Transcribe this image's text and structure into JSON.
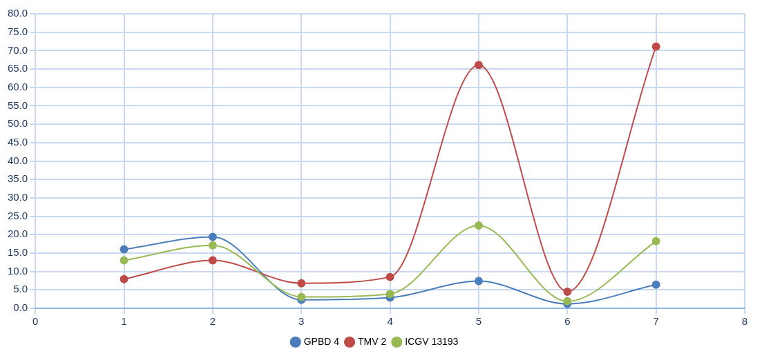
{
  "chart_data": {
    "type": "line",
    "x": [
      1,
      2,
      3,
      4,
      5,
      6,
      7
    ],
    "series": [
      {
        "name": "GPBD 4",
        "color": "#4a7ebb",
        "values": [
          16.0,
          19.4,
          2.3,
          2.9,
          7.4,
          1.2,
          6.4
        ]
      },
      {
        "name": "TMV 2",
        "color": "#be4b48",
        "values": [
          7.9,
          13.0,
          6.8,
          8.5,
          66.1,
          4.5,
          71.1
        ]
      },
      {
        "name": "ICGV 13193",
        "color": "#98b954",
        "values": [
          13.0,
          17.1,
          3.1,
          3.9,
          22.5,
          1.9,
          18.2
        ]
      }
    ],
    "xlim": [
      0,
      8
    ],
    "xticks": [
      0,
      1,
      2,
      3,
      4,
      5,
      6,
      7,
      8
    ],
    "ylim": [
      0,
      80
    ],
    "yticks": [
      {
        "value": 0,
        "label": "0.0"
      },
      {
        "value": 5,
        "label": "5.0"
      },
      {
        "value": 10,
        "label": "10.0"
      },
      {
        "value": 15,
        "label": "15.0"
      },
      {
        "value": 20,
        "label": "20.0"
      },
      {
        "value": 25,
        "label": "25.0"
      },
      {
        "value": 30,
        "label": "30.0"
      },
      {
        "value": 35,
        "label": "35.0"
      },
      {
        "value": 40,
        "label": "40.0"
      },
      {
        "value": 45,
        "label": "45.0"
      },
      {
        "value": 50,
        "label": "50.0"
      },
      {
        "value": 55,
        "label": "55.0"
      },
      {
        "value": 60,
        "label": "60.0"
      },
      {
        "value": 65,
        "label": "65.0"
      },
      {
        "value": 70,
        "label": "70.0"
      },
      {
        "value": 75,
        "label": "75.0"
      },
      {
        "value": 80,
        "label": "80.0"
      }
    ],
    "grid": true,
    "legend": "bottom",
    "marker": "circle",
    "line_style": "solid"
  }
}
